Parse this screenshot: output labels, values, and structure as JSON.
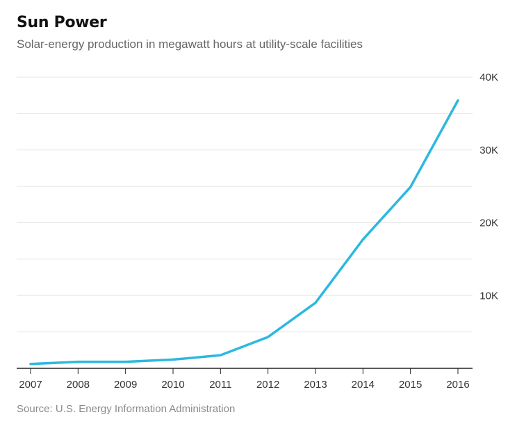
{
  "header": {
    "title": "Sun Power",
    "subtitle": "Solar-energy production in megawatt hours at utility-scale facilities"
  },
  "footer": {
    "source": "Source: U.S. Energy Information Administration"
  },
  "colors": {
    "line": "#2cb8e0",
    "grid": "#e6e6e6",
    "axis": "#222222"
  },
  "chart_data": {
    "type": "line",
    "title": "Sun Power",
    "subtitle": "Solar-energy production in megawatt hours at utility-scale facilities",
    "xlabel": "",
    "ylabel": "",
    "x": [
      "2007",
      "2008",
      "2009",
      "2010",
      "2011",
      "2012",
      "2013",
      "2014",
      "2015",
      "2016"
    ],
    "series": [
      {
        "values": [
          600,
          900,
          900,
          1200,
          1800,
          4300,
          9000,
          17700,
          24900,
          36800
        ]
      }
    ],
    "ylim": [
      0,
      40000
    ],
    "yticks": [
      10000,
      20000,
      30000,
      40000
    ],
    "ytick_labels": [
      "10K",
      "20K",
      "30K",
      "40K"
    ],
    "grid": true,
    "y_axis_position": "right",
    "source": "Source: U.S. Energy Information Administration"
  }
}
